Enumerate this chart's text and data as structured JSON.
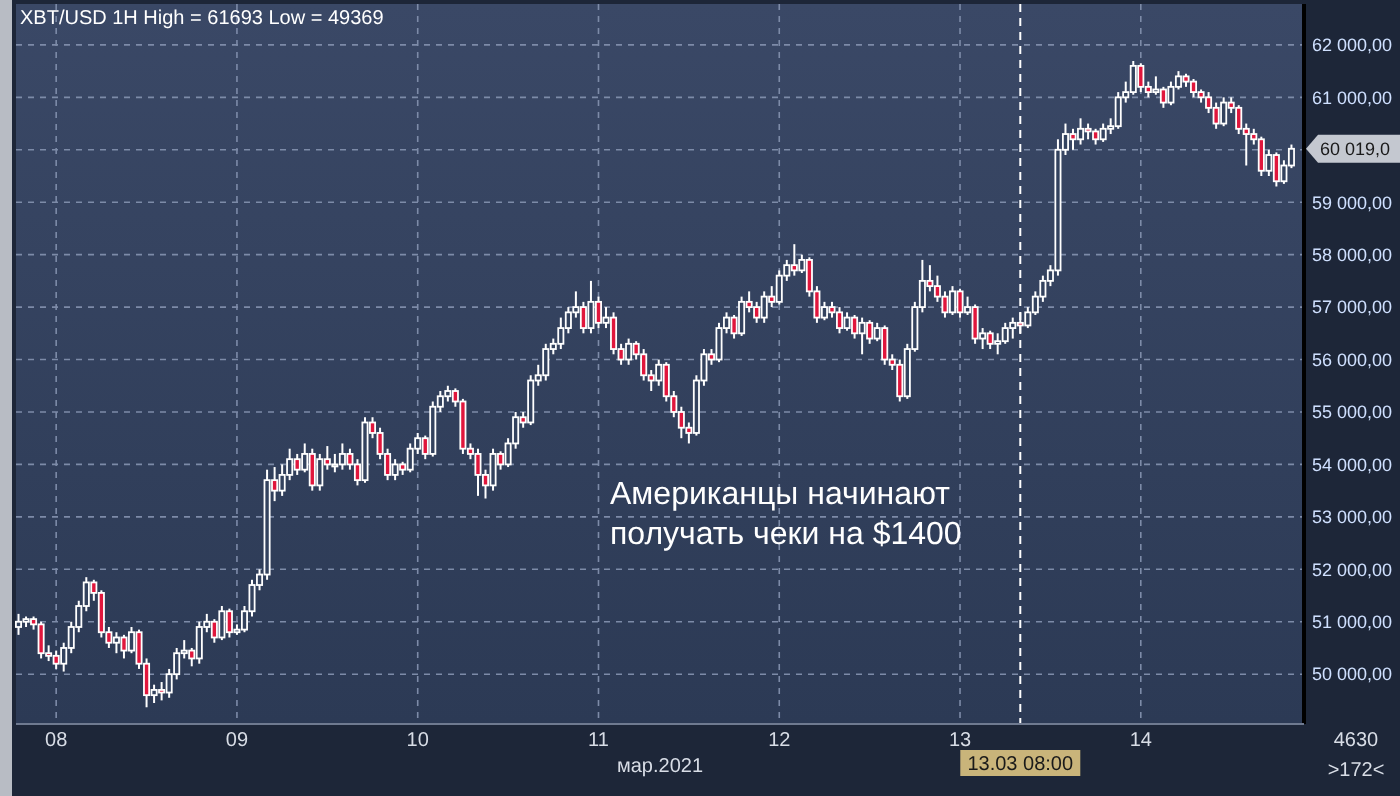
{
  "chart_data": {
    "type": "candlestick",
    "title": "XBT/USD 1H High = 61693 Low = 49369",
    "xlabel": "мар.2021",
    "x": [
      "2021-03-07T19:00",
      "2021-03-07T20:00",
      "2021-03-07T21:00",
      "2021-03-07T22:00",
      "2021-03-07T23:00",
      "2021-03-08T00:00",
      "2021-03-08T01:00",
      "2021-03-08T02:00",
      "2021-03-08T03:00",
      "2021-03-08T04:00",
      "2021-03-08T05:00",
      "2021-03-08T06:00",
      "2021-03-08T07:00",
      "2021-03-08T08:00",
      "2021-03-08T09:00",
      "2021-03-08T10:00",
      "2021-03-08T11:00",
      "2021-03-08T12:00",
      "2021-03-08T13:00",
      "2021-03-08T14:00",
      "2021-03-08T15:00",
      "2021-03-08T16:00",
      "2021-03-08T17:00",
      "2021-03-08T18:00",
      "2021-03-08T19:00",
      "2021-03-08T20:00",
      "2021-03-08T21:00",
      "2021-03-08T22:00",
      "2021-03-08T23:00",
      "2021-03-09T00:00",
      "2021-03-09T01:00",
      "2021-03-09T02:00",
      "2021-03-09T03:00",
      "2021-03-09T04:00",
      "2021-03-09T05:00",
      "2021-03-09T06:00",
      "2021-03-09T07:00",
      "2021-03-09T08:00",
      "2021-03-09T09:00",
      "2021-03-09T10:00",
      "2021-03-09T11:00",
      "2021-03-09T12:00",
      "2021-03-09T13:00",
      "2021-03-09T14:00",
      "2021-03-09T15:00",
      "2021-03-09T16:00",
      "2021-03-09T17:00",
      "2021-03-09T18:00",
      "2021-03-09T19:00",
      "2021-03-09T20:00",
      "2021-03-09T21:00",
      "2021-03-09T22:00",
      "2021-03-09T23:00",
      "2021-03-10T00:00",
      "2021-03-10T01:00",
      "2021-03-10T02:00",
      "2021-03-10T03:00",
      "2021-03-10T04:00",
      "2021-03-10T05:00",
      "2021-03-10T06:00",
      "2021-03-10T07:00",
      "2021-03-10T08:00",
      "2021-03-10T09:00",
      "2021-03-10T10:00",
      "2021-03-10T11:00",
      "2021-03-10T12:00",
      "2021-03-10T13:00",
      "2021-03-10T14:00",
      "2021-03-10T15:00",
      "2021-03-10T16:00",
      "2021-03-10T17:00",
      "2021-03-10T18:00",
      "2021-03-10T19:00",
      "2021-03-10T20:00",
      "2021-03-10T21:00",
      "2021-03-10T22:00",
      "2021-03-10T23:00",
      "2021-03-11T00:00",
      "2021-03-11T01:00",
      "2021-03-11T02:00",
      "2021-03-11T03:00",
      "2021-03-11T04:00",
      "2021-03-11T05:00",
      "2021-03-11T06:00",
      "2021-03-11T07:00",
      "2021-03-11T08:00",
      "2021-03-11T09:00",
      "2021-03-11T10:00",
      "2021-03-11T11:00",
      "2021-03-11T12:00",
      "2021-03-11T13:00",
      "2021-03-11T14:00",
      "2021-03-11T15:00",
      "2021-03-11T16:00",
      "2021-03-11T17:00",
      "2021-03-11T18:00",
      "2021-03-11T19:00",
      "2021-03-11T20:00",
      "2021-03-11T21:00",
      "2021-03-11T22:00",
      "2021-03-11T23:00",
      "2021-03-12T00:00",
      "2021-03-12T01:00",
      "2021-03-12T02:00",
      "2021-03-12T03:00",
      "2021-03-12T04:00",
      "2021-03-12T05:00",
      "2021-03-12T06:00",
      "2021-03-12T07:00",
      "2021-03-12T08:00",
      "2021-03-12T09:00",
      "2021-03-12T10:00",
      "2021-03-12T11:00",
      "2021-03-12T12:00",
      "2021-03-12T13:00",
      "2021-03-12T14:00",
      "2021-03-12T15:00",
      "2021-03-12T16:00",
      "2021-03-12T17:00",
      "2021-03-12T18:00",
      "2021-03-12T19:00",
      "2021-03-12T20:00",
      "2021-03-12T21:00",
      "2021-03-12T22:00",
      "2021-03-12T23:00",
      "2021-03-13T00:00",
      "2021-03-13T01:00",
      "2021-03-13T02:00",
      "2021-03-13T03:00",
      "2021-03-13T04:00",
      "2021-03-13T05:00",
      "2021-03-13T06:00",
      "2021-03-13T07:00",
      "2021-03-13T08:00",
      "2021-03-13T09:00",
      "2021-03-13T10:00",
      "2021-03-13T11:00",
      "2021-03-13T12:00",
      "2021-03-13T13:00",
      "2021-03-13T14:00",
      "2021-03-13T15:00",
      "2021-03-13T16:00",
      "2021-03-13T17:00",
      "2021-03-13T18:00",
      "2021-03-13T19:00",
      "2021-03-13T20:00",
      "2021-03-13T21:00",
      "2021-03-13T22:00",
      "2021-03-13T23:00",
      "2021-03-14T00:00",
      "2021-03-14T01:00",
      "2021-03-14T02:00",
      "2021-03-14T03:00",
      "2021-03-14T04:00",
      "2021-03-14T05:00",
      "2021-03-14T06:00",
      "2021-03-14T07:00",
      "2021-03-14T08:00",
      "2021-03-14T09:00",
      "2021-03-14T10:00",
      "2021-03-14T11:00",
      "2021-03-14T12:00",
      "2021-03-14T13:00",
      "2021-03-14T14:00",
      "2021-03-14T15:00",
      "2021-03-14T16:00",
      "2021-03-14T17:00",
      "2021-03-14T18:00",
      "2021-03-14T19:00",
      "2021-03-14T20:00"
    ],
    "ohlc": [
      [
        50900,
        51150,
        50750,
        51000
      ],
      [
        51000,
        51100,
        50900,
        51050
      ],
      [
        51050,
        51100,
        50850,
        50950
      ],
      [
        50950,
        51000,
        50300,
        50400
      ],
      [
        50400,
        50550,
        50250,
        50350
      ],
      [
        50350,
        50450,
        50100,
        50200
      ],
      [
        50200,
        50600,
        50050,
        50500
      ],
      [
        50500,
        51000,
        50400,
        50900
      ],
      [
        50900,
        51400,
        50800,
        51300
      ],
      [
        51300,
        51850,
        51200,
        51750
      ],
      [
        51750,
        51800,
        51400,
        51550
      ],
      [
        51550,
        51600,
        50700,
        50800
      ],
      [
        50800,
        50900,
        50500,
        50600
      ],
      [
        50600,
        50800,
        50400,
        50700
      ],
      [
        50700,
        50750,
        50300,
        50450
      ],
      [
        50450,
        50900,
        50400,
        50800
      ],
      [
        50800,
        50850,
        50100,
        50200
      ],
      [
        50200,
        50300,
        49369,
        49600
      ],
      [
        49600,
        49800,
        49450,
        49700
      ],
      [
        49700,
        49850,
        49500,
        49650
      ],
      [
        49650,
        50100,
        49550,
        50000
      ],
      [
        50000,
        50500,
        49900,
        50400
      ],
      [
        50400,
        50650,
        50300,
        50450
      ],
      [
        50450,
        50500,
        50150,
        50300
      ],
      [
        50300,
        51000,
        50200,
        50900
      ],
      [
        50900,
        51150,
        50800,
        51000
      ],
      [
        51000,
        51050,
        50600,
        50700
      ],
      [
        50700,
        51300,
        50650,
        51200
      ],
      [
        51200,
        51250,
        50700,
        50800
      ],
      [
        50800,
        50950,
        50750,
        50850
      ],
      [
        50850,
        51300,
        50800,
        51200
      ],
      [
        51200,
        51800,
        51100,
        51700
      ],
      [
        51700,
        52000,
        51600,
        51900
      ],
      [
        51900,
        53900,
        51800,
        53700
      ],
      [
        53700,
        53950,
        53300,
        53500
      ],
      [
        53500,
        54000,
        53400,
        53800
      ],
      [
        53800,
        54300,
        53700,
        54100
      ],
      [
        54100,
        54200,
        53800,
        53900
      ],
      [
        53900,
        54400,
        53850,
        54200
      ],
      [
        54200,
        54300,
        53500,
        53600
      ],
      [
        53600,
        54200,
        53500,
        54100
      ],
      [
        54100,
        54350,
        53900,
        54000
      ],
      [
        54000,
        54200,
        53850,
        54000
      ],
      [
        54000,
        54400,
        53900,
        54200
      ],
      [
        54200,
        54300,
        53900,
        54000
      ],
      [
        54000,
        54100,
        53600,
        53700
      ],
      [
        53700,
        54900,
        53650,
        54800
      ],
      [
        54800,
        54900,
        54500,
        54600
      ],
      [
        54600,
        54700,
        54100,
        54200
      ],
      [
        54200,
        54300,
        53700,
        53800
      ],
      [
        53800,
        54100,
        53700,
        54000
      ],
      [
        54000,
        54050,
        53800,
        53900
      ],
      [
        53900,
        54400,
        53850,
        54300
      ],
      [
        54300,
        54600,
        54200,
        54500
      ],
      [
        54500,
        54550,
        54100,
        54200
      ],
      [
        54200,
        55200,
        54150,
        55100
      ],
      [
        55100,
        55400,
        55000,
        55300
      ],
      [
        55300,
        55500,
        55200,
        55400
      ],
      [
        55400,
        55450,
        55100,
        55200
      ],
      [
        55200,
        55250,
        54200,
        54300
      ],
      [
        54300,
        54400,
        54100,
        54200
      ],
      [
        54200,
        54300,
        53400,
        53800
      ],
      [
        53800,
        53900,
        53350,
        53600
      ],
      [
        53600,
        54300,
        53500,
        54200
      ],
      [
        54200,
        54250,
        53900,
        54000
      ],
      [
        54000,
        54500,
        53950,
        54400
      ],
      [
        54400,
        55000,
        54300,
        54900
      ],
      [
        54900,
        55000,
        54700,
        54800
      ],
      [
        54800,
        55700,
        54750,
        55600
      ],
      [
        55600,
        55900,
        55500,
        55700
      ],
      [
        55700,
        56300,
        55600,
        56200
      ],
      [
        56200,
        56400,
        56100,
        56300
      ],
      [
        56300,
        56800,
        56200,
        56600
      ],
      [
        56600,
        57000,
        56500,
        56900
      ],
      [
        56900,
        57300,
        56800,
        57000
      ],
      [
        57000,
        57100,
        56500,
        56600
      ],
      [
        56600,
        57500,
        56500,
        57100
      ],
      [
        57100,
        57200,
        56600,
        56700
      ],
      [
        56700,
        57000,
        56600,
        56800
      ],
      [
        56800,
        56900,
        56100,
        56200
      ],
      [
        56200,
        56300,
        55900,
        56000
      ],
      [
        56000,
        56400,
        55900,
        56300
      ],
      [
        56300,
        56350,
        56000,
        56100
      ],
      [
        56100,
        56200,
        55600,
        55700
      ],
      [
        55700,
        55800,
        55400,
        55600
      ],
      [
        55600,
        56000,
        55500,
        55900
      ],
      [
        55900,
        55950,
        55200,
        55300
      ],
      [
        55300,
        55400,
        54900,
        55000
      ],
      [
        55000,
        55100,
        54500,
        54700
      ],
      [
        54700,
        54800,
        54400,
        54600
      ],
      [
        54600,
        55700,
        54550,
        55600
      ],
      [
        55600,
        56200,
        55500,
        56100
      ],
      [
        56100,
        56200,
        55900,
        56000
      ],
      [
        56000,
        56700,
        55950,
        56600
      ],
      [
        56600,
        56900,
        56500,
        56800
      ],
      [
        56800,
        56850,
        56400,
        56500
      ],
      [
        56500,
        57200,
        56450,
        57100
      ],
      [
        57100,
        57300,
        56900,
        57000
      ],
      [
        57000,
        57100,
        56700,
        56800
      ],
      [
        56800,
        57300,
        56700,
        57200
      ],
      [
        57200,
        57400,
        57000,
        57100
      ],
      [
        57100,
        57700,
        57050,
        57600
      ],
      [
        57600,
        57900,
        57500,
        57800
      ],
      [
        57800,
        58200,
        57600,
        57700
      ],
      [
        57700,
        58000,
        57650,
        57900
      ],
      [
        57900,
        57950,
        57200,
        57300
      ],
      [
        57300,
        57400,
        56700,
        56800
      ],
      [
        56800,
        57100,
        56750,
        57000
      ],
      [
        57000,
        57100,
        56800,
        56900
      ],
      [
        56900,
        57000,
        56500,
        56600
      ],
      [
        56600,
        56900,
        56550,
        56800
      ],
      [
        56800,
        56850,
        56400,
        56500
      ],
      [
        56500,
        56800,
        56100,
        56700
      ],
      [
        56700,
        56750,
        56300,
        56400
      ],
      [
        56400,
        56700,
        56350,
        56600
      ],
      [
        56600,
        56650,
        55900,
        56000
      ],
      [
        56000,
        56100,
        55800,
        55900
      ],
      [
        55900,
        56000,
        55200,
        55300
      ],
      [
        55300,
        56300,
        55250,
        56200
      ],
      [
        56200,
        57100,
        56150,
        57000
      ],
      [
        57000,
        57900,
        56900,
        57500
      ],
      [
        57500,
        57800,
        57300,
        57400
      ],
      [
        57400,
        57600,
        57100,
        57200
      ],
      [
        57200,
        57300,
        56800,
        56900
      ],
      [
        56900,
        57400,
        56850,
        57300
      ],
      [
        57300,
        57350,
        56800,
        56900
      ],
      [
        56900,
        57200,
        56850,
        57000
      ],
      [
        57000,
        57050,
        56300,
        56400
      ],
      [
        56400,
        56600,
        56200,
        56500
      ],
      [
        56500,
        56550,
        56200,
        56300
      ],
      [
        56300,
        56500,
        56100,
        56350
      ],
      [
        56350,
        56700,
        56300,
        56600
      ],
      [
        56600,
        56800,
        56400,
        56700
      ],
      [
        56700,
        56900,
        56500,
        56650
      ],
      [
        56650,
        57000,
        56600,
        56900
      ],
      [
        56900,
        57300,
        56850,
        57200
      ],
      [
        57200,
        57600,
        57100,
        57500
      ],
      [
        57500,
        57800,
        57400,
        57700
      ],
      [
        57700,
        60200,
        57600,
        60000
      ],
      [
        60000,
        60500,
        59900,
        60300
      ],
      [
        60300,
        60400,
        60000,
        60200
      ],
      [
        60200,
        60600,
        60100,
        60400
      ],
      [
        60400,
        60500,
        60200,
        60350
      ],
      [
        60350,
        60400,
        60100,
        60200
      ],
      [
        60200,
        60500,
        60150,
        60400
      ],
      [
        60400,
        60600,
        60300,
        60450
      ],
      [
        60450,
        61100,
        60400,
        61000
      ],
      [
        61000,
        61300,
        60900,
        61100
      ],
      [
        61100,
        61693,
        61050,
        61600
      ],
      [
        61600,
        61650,
        61100,
        61200
      ],
      [
        61200,
        61300,
        61000,
        61100
      ],
      [
        61100,
        61400,
        61050,
        61150
      ],
      [
        61150,
        61200,
        60800,
        60900
      ],
      [
        60900,
        61300,
        60850,
        61200
      ],
      [
        61200,
        61500,
        61150,
        61400
      ],
      [
        61400,
        61450,
        61200,
        61300
      ],
      [
        61300,
        61350,
        61000,
        61100
      ],
      [
        61100,
        61150,
        60900,
        61000
      ],
      [
        61000,
        61100,
        60700,
        60800
      ],
      [
        60800,
        60900,
        60400,
        60500
      ],
      [
        60500,
        61000,
        60450,
        60900
      ],
      [
        60900,
        61000,
        60700,
        60800
      ],
      [
        60800,
        60850,
        60300,
        60400
      ],
      [
        60400,
        60500,
        59700,
        60300
      ],
      [
        60300,
        60400,
        60100,
        60200
      ],
      [
        60200,
        60250,
        59500,
        59600
      ],
      [
        59600,
        60000,
        59500,
        59900
      ],
      [
        59900,
        59950,
        59300,
        59400
      ],
      [
        59400,
        59800,
        59350,
        59700
      ],
      [
        59700,
        60100,
        59650,
        60019
      ]
    ],
    "xlim": [
      "2021-03-07T18:40",
      "2021-03-14T21:40"
    ],
    "xticks": [
      {
        "value": "2021-03-08",
        "label": "08"
      },
      {
        "value": "2021-03-09",
        "label": "09"
      },
      {
        "value": "2021-03-10",
        "label": "10"
      },
      {
        "value": "2021-03-11",
        "label": "11"
      },
      {
        "value": "2021-03-12",
        "label": "12"
      },
      {
        "value": "2021-03-13",
        "label": "13"
      },
      {
        "value": "2021-03-14",
        "label": "14"
      }
    ],
    "ylim": [
      49050,
      62780
    ],
    "yticks": [
      {
        "value": 50000,
        "label": "50 000,00"
      },
      {
        "value": 51000,
        "label": "51 000,00"
      },
      {
        "value": 52000,
        "label": "52 000,00"
      },
      {
        "value": 53000,
        "label": "53 000,00"
      },
      {
        "value": 54000,
        "label": "54 000,00"
      },
      {
        "value": 55000,
        "label": "55 000,00"
      },
      {
        "value": 56000,
        "label": "56 000,00"
      },
      {
        "value": 57000,
        "label": "57 000,00"
      },
      {
        "value": 58000,
        "label": "58 000,00"
      },
      {
        "value": 59000,
        "label": "59 000,00"
      },
      {
        "value": 60000,
        "label": null
      },
      {
        "value": 61000,
        "label": "61 000,00"
      },
      {
        "value": 62000,
        "label": "62 000,00"
      }
    ],
    "grid": true,
    "ref_lines": [
      {
        "axis": "x",
        "value": "2021-03-13T08:00",
        "label": "13.03 08:00",
        "line_style": "dashed",
        "color": "#ffffff"
      }
    ],
    "annotations": [
      "Американцы начинают\nполучать чеки на $1400",
      "60 019,0",
      "4630",
      ">172<"
    ]
  }
}
